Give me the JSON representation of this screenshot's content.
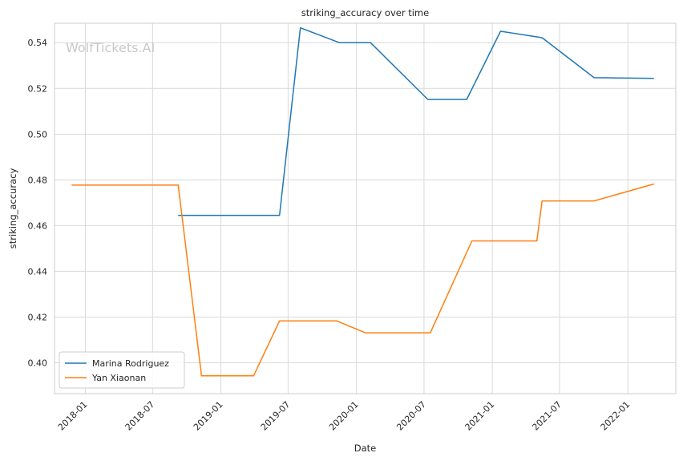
{
  "chart_data": {
    "type": "line",
    "title": "striking_accuracy over time",
    "xlabel": "Date",
    "ylabel": "striking_accuracy",
    "watermark": "WolfTickets.AI",
    "x_ticks": [
      "2018-01",
      "2018-07",
      "2019-01",
      "2019-07",
      "2020-01",
      "2020-07",
      "2021-01",
      "2021-07",
      "2022-01"
    ],
    "y_ticks": [
      "0.40",
      "0.42",
      "0.44",
      "0.46",
      "0.48",
      "0.50",
      "0.52",
      "0.54"
    ],
    "xlim": [
      "2017-10-10",
      "2022-05-10"
    ],
    "ylim": [
      0.3865,
      0.5485
    ],
    "grid": true,
    "legend_position": "lower-left",
    "series": [
      {
        "name": "Marina Rodriguez",
        "color": "#1f77b4",
        "points": [
          [
            "2018-09-08",
            0.4645
          ],
          [
            "2019-06-08",
            0.4645
          ],
          [
            "2019-08-03",
            0.5465
          ],
          [
            "2019-11-16",
            0.54
          ],
          [
            "2020-02-08",
            0.54
          ],
          [
            "2020-07-11",
            0.5152
          ],
          [
            "2020-10-24",
            0.5152
          ],
          [
            "2021-01-23",
            0.545
          ],
          [
            "2021-05-15",
            0.5422
          ],
          [
            "2021-10-02",
            0.5247
          ],
          [
            "2022-03-12",
            0.5244
          ]
        ]
      },
      {
        "name": "Yan Xiaonan",
        "color": "#ff7f0e",
        "points": [
          [
            "2017-11-25",
            0.4777
          ],
          [
            "2018-09-08",
            0.4777
          ],
          [
            "2018-11-10",
            0.3943
          ],
          [
            "2019-03-30",
            0.3943
          ],
          [
            "2019-06-08",
            0.4183
          ],
          [
            "2019-11-09",
            0.4183
          ],
          [
            "2020-01-25",
            0.4131
          ],
          [
            "2020-07-18",
            0.4131
          ],
          [
            "2020-11-07",
            0.4533
          ],
          [
            "2021-05-01",
            0.4533
          ],
          [
            "2021-05-15",
            0.4708
          ],
          [
            "2021-10-02",
            0.4708
          ],
          [
            "2022-03-12",
            0.4782
          ]
        ]
      }
    ]
  }
}
